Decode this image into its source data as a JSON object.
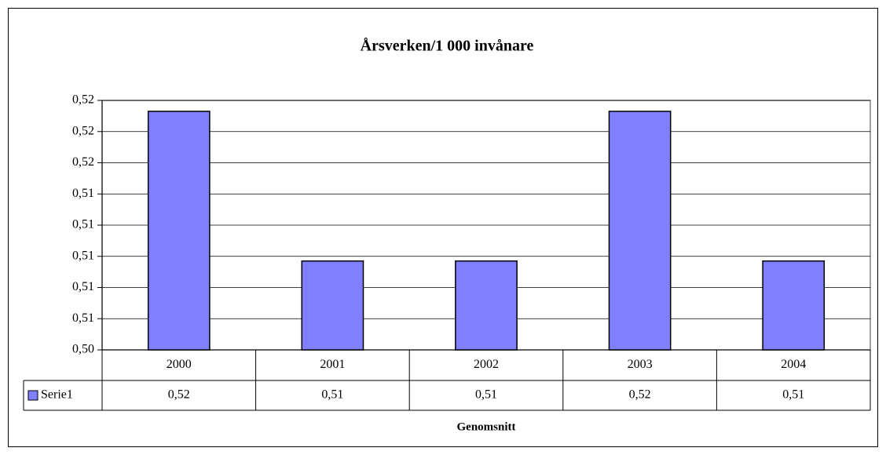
{
  "chart_data": {
    "type": "bar",
    "title": "Årsverken/1 000 invånare",
    "x_label": "Genomsnitt",
    "categories": [
      "2000",
      "2001",
      "2002",
      "2003",
      "2004"
    ],
    "series": [
      {
        "name": "Serie1",
        "color": "#8080ff",
        "values": [
          0.5193,
          0.5097,
          0.5097,
          0.5193,
          0.5097
        ],
        "value_labels": [
          "0,52",
          "0,51",
          "0,51",
          "0,52",
          "0,51"
        ]
      }
    ],
    "ylim": [
      0.504,
      0.52
    ],
    "yticks": [
      {
        "value": 0.504,
        "label": "0,50"
      },
      {
        "value": 0.506,
        "label": "0,51"
      },
      {
        "value": 0.508,
        "label": "0,51"
      },
      {
        "value": 0.51,
        "label": "0,51"
      },
      {
        "value": 0.512,
        "label": "0,51"
      },
      {
        "value": 0.514,
        "label": "0,51"
      },
      {
        "value": 0.516,
        "label": "0,52"
      },
      {
        "value": 0.518,
        "label": "0,52"
      },
      {
        "value": 0.52,
        "label": "0,52"
      }
    ],
    "grid": true,
    "data_table": true
  }
}
